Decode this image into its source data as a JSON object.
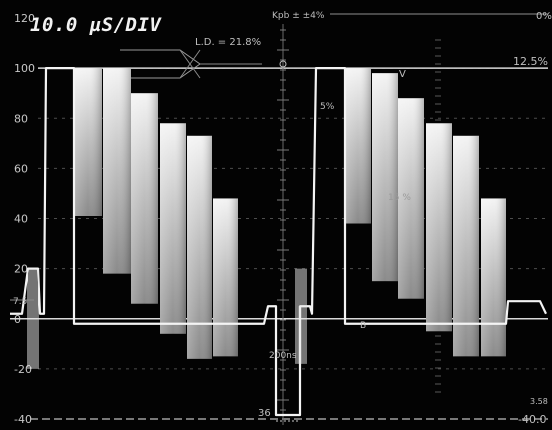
{
  "display": {
    "timebase": "10.0 µS/DIV",
    "annotation_ld": "L.D. = 21.8%",
    "annotation_kpb": "Kpb ± ±4%",
    "right_top": "0%",
    "right_percent": "12.5%",
    "pct_5": "5%",
    "marker_v": "V",
    "marker_b": "B",
    "mid_right": "15 %",
    "bottom_200": "200ns",
    "bottom_36": "36",
    "bottom_right_val": "3.58",
    "bottom_right_end": "-40.0",
    "left_tick_7_5": "7.5"
  },
  "scale": {
    "labels": [
      "120",
      "100",
      "80",
      "60",
      "40",
      "20",
      "0",
      "-20",
      "-40"
    ]
  },
  "waveform": {
    "bar_color_top": "#f2f2f2",
    "bar_color_bottom": "#7a7a7a",
    "trace_color": "#ffffff"
  }
}
